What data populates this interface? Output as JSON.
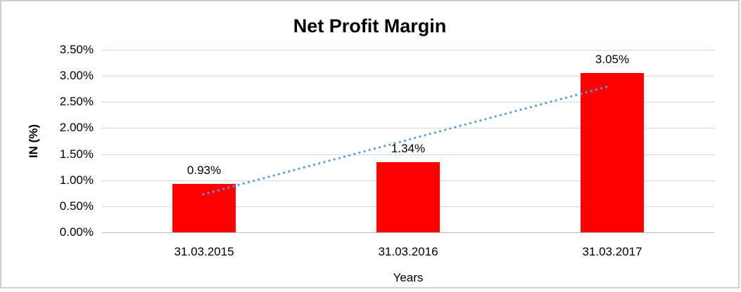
{
  "chart_data": {
    "type": "bar",
    "title": "Net Profit Margin",
    "xlabel": "Years",
    "ylabel": "IN (%)",
    "categories": [
      "31.03.2015",
      "31.03.2016",
      "31.03.2017"
    ],
    "values": [
      0.93,
      1.34,
      3.05
    ],
    "value_labels": [
      "0.93%",
      "1.34%",
      "3.05%"
    ],
    "bar_color": "#FF0000",
    "ylim": [
      0,
      3.5
    ],
    "ytick_step": 0.5,
    "ytick_labels": [
      "0.00%",
      "0.50%",
      "1.00%",
      "1.50%",
      "2.00%",
      "2.50%",
      "3.00%",
      "3.50%"
    ],
    "grid": true,
    "gridline_color": "#D9D9D9",
    "axis_line_color": "#BFBFBF",
    "legend": "none",
    "trendline": {
      "type": "linear",
      "style": "dotted",
      "color": "#5B9BD5",
      "x1_frac": 0.1655,
      "y1_value": 0.73,
      "x2_frac": 0.8276,
      "y2_value": 2.8
    }
  }
}
